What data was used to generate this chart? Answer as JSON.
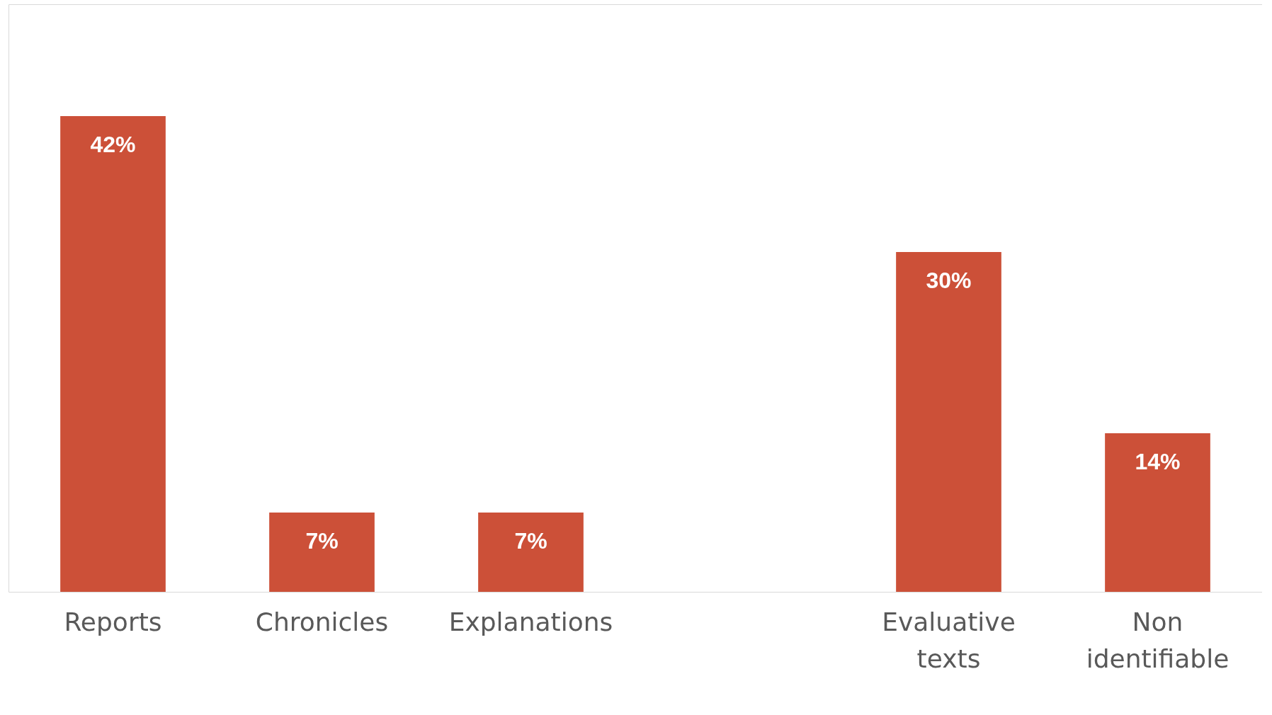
{
  "chart_data": {
    "type": "bar",
    "categories": [
      "Reports",
      "Chronicles",
      "Explanations",
      null,
      "Evaluative texts",
      "Non identifiable"
    ],
    "values": [
      42,
      7,
      7,
      null,
      30,
      14
    ],
    "color": "#cc5038",
    "value_labels": [
      "42%",
      "7%",
      "7%",
      null,
      "30%",
      "14%"
    ],
    "grid": false
  }
}
